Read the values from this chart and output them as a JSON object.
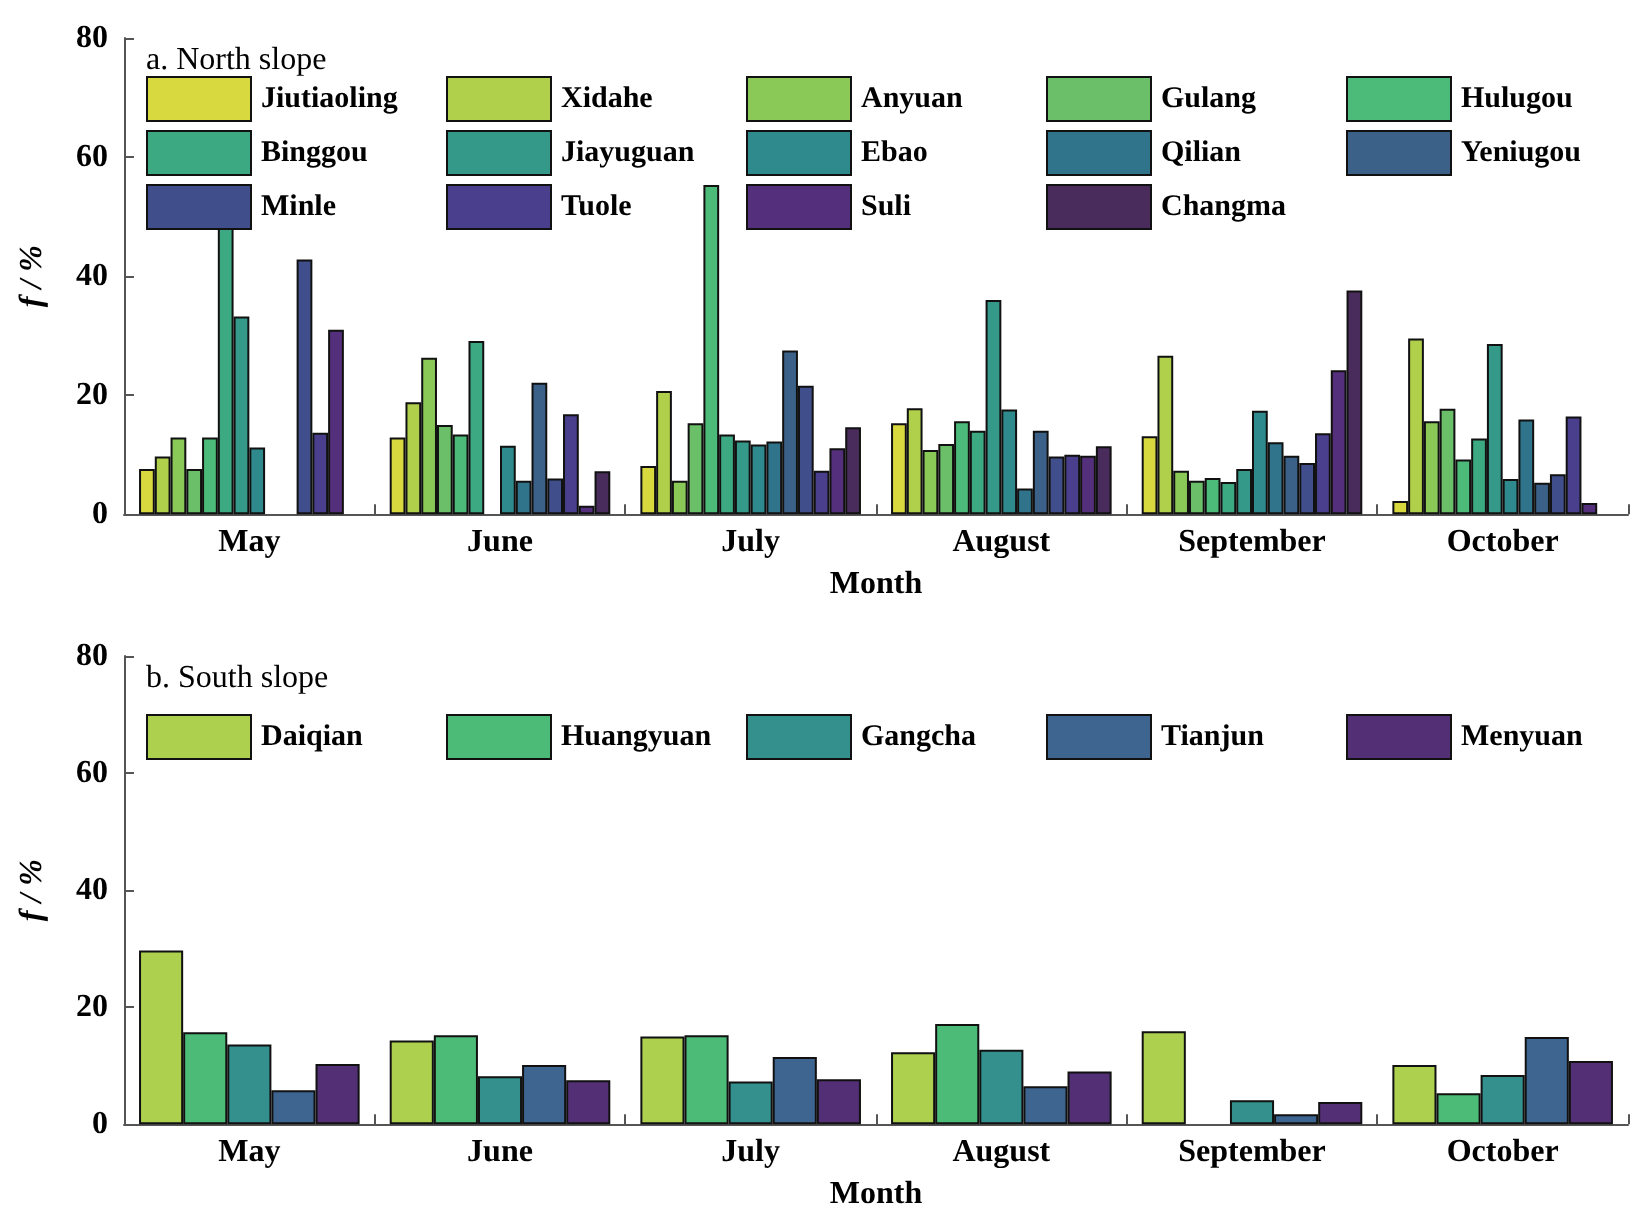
{
  "chart_data": [
    {
      "type": "bar",
      "title": "a. North slope",
      "xlabel": "Month",
      "ylabel": "f / %",
      "legend": "top left",
      "ylim": [
        0,
        80
      ],
      "yticks": [
        0,
        20,
        40,
        60,
        80
      ],
      "categories": [
        "May",
        "June",
        "July",
        "August",
        "September",
        "October"
      ],
      "series": [
        {
          "name": "Jiutiaoling",
          "color": "#d8d83f",
          "values": [
            7.6,
            12.9,
            8.1,
            15.3,
            13.1,
            2.2
          ]
        },
        {
          "name": "Xidahe",
          "color": "#b0d04b",
          "values": [
            9.7,
            18.8,
            20.7,
            17.8,
            26.6,
            29.5
          ]
        },
        {
          "name": "Anyuan",
          "color": "#8ac858",
          "values": [
            12.9,
            26.3,
            5.6,
            10.8,
            7.3,
            15.6
          ]
        },
        {
          "name": "Gulang",
          "color": "#6abf68",
          "values": [
            7.6,
            15.0,
            15.3,
            11.8,
            5.6,
            17.7
          ]
        },
        {
          "name": "Hulugou",
          "color": "#4cba78",
          "values": [
            12.9,
            13.4,
            55.3,
            15.6,
            6.1,
            9.2
          ]
        },
        {
          "name": "Binggou",
          "color": "#3ca982",
          "values": [
            48.5,
            29.1,
            13.4,
            14.0,
            5.4,
            12.7
          ]
        },
        {
          "name": "Jiayuguan",
          "color": "#35998a",
          "values": [
            33.2,
            null,
            12.4,
            36.0,
            7.6,
            28.6
          ]
        },
        {
          "name": "Ebao",
          "color": "#2e8a8c",
          "values": [
            11.2,
            11.5,
            11.7,
            17.6,
            17.4,
            5.9
          ]
        },
        {
          "name": "Qilian",
          "color": "#2f748a",
          "values": [
            null,
            5.6,
            12.2,
            4.3,
            12.1,
            15.9
          ]
        },
        {
          "name": "Yeniugou",
          "color": "#3b6189",
          "values": [
            null,
            22.1,
            27.5,
            14.0,
            9.8,
            5.3
          ]
        },
        {
          "name": "Minle",
          "color": "#404f8c",
          "values": [
            42.8,
            6.0,
            21.6,
            9.7,
            8.6,
            6.7
          ]
        },
        {
          "name": "Tuole",
          "color": "#4a3f8c",
          "values": [
            13.7,
            16.8,
            7.3,
            10.0,
            13.6,
            16.4
          ]
        },
        {
          "name": "Suli",
          "color": "#54307c",
          "values": [
            31.0,
            1.4,
            11.1,
            9.8,
            24.2,
            1.9
          ]
        },
        {
          "name": "Changma",
          "color": "#4a2c5c",
          "values": [
            null,
            7.2,
            14.6,
            11.4,
            37.6,
            null
          ]
        }
      ]
    },
    {
      "type": "bar",
      "title": "b. South slope",
      "xlabel": "Month",
      "ylabel": "f / %",
      "legend": "top left",
      "ylim": [
        0,
        80
      ],
      "yticks": [
        0,
        20,
        40,
        60,
        80
      ],
      "categories": [
        "May",
        "June",
        "July",
        "August",
        "September",
        "October"
      ],
      "series": [
        {
          "name": "Daiqian",
          "color": "#add14e",
          "values": [
            29.7,
            14.3,
            15.0,
            12.3,
            15.9,
            10.1
          ]
        },
        {
          "name": "Huangyuan",
          "color": "#4cbb78",
          "values": [
            15.7,
            15.2,
            15.2,
            17.1,
            null,
            5.3
          ]
        },
        {
          "name": "Gangcha",
          "color": "#33908c",
          "values": [
            13.6,
            8.2,
            7.3,
            12.7,
            4.1,
            8.4
          ]
        },
        {
          "name": "Tianjun",
          "color": "#3d6590",
          "values": [
            5.8,
            10.1,
            11.5,
            6.5,
            1.7,
            14.9
          ]
        },
        {
          "name": "Menyuan",
          "color": "#532f76",
          "values": [
            10.3,
            7.5,
            7.7,
            9.0,
            3.8,
            10.8
          ]
        }
      ]
    }
  ]
}
